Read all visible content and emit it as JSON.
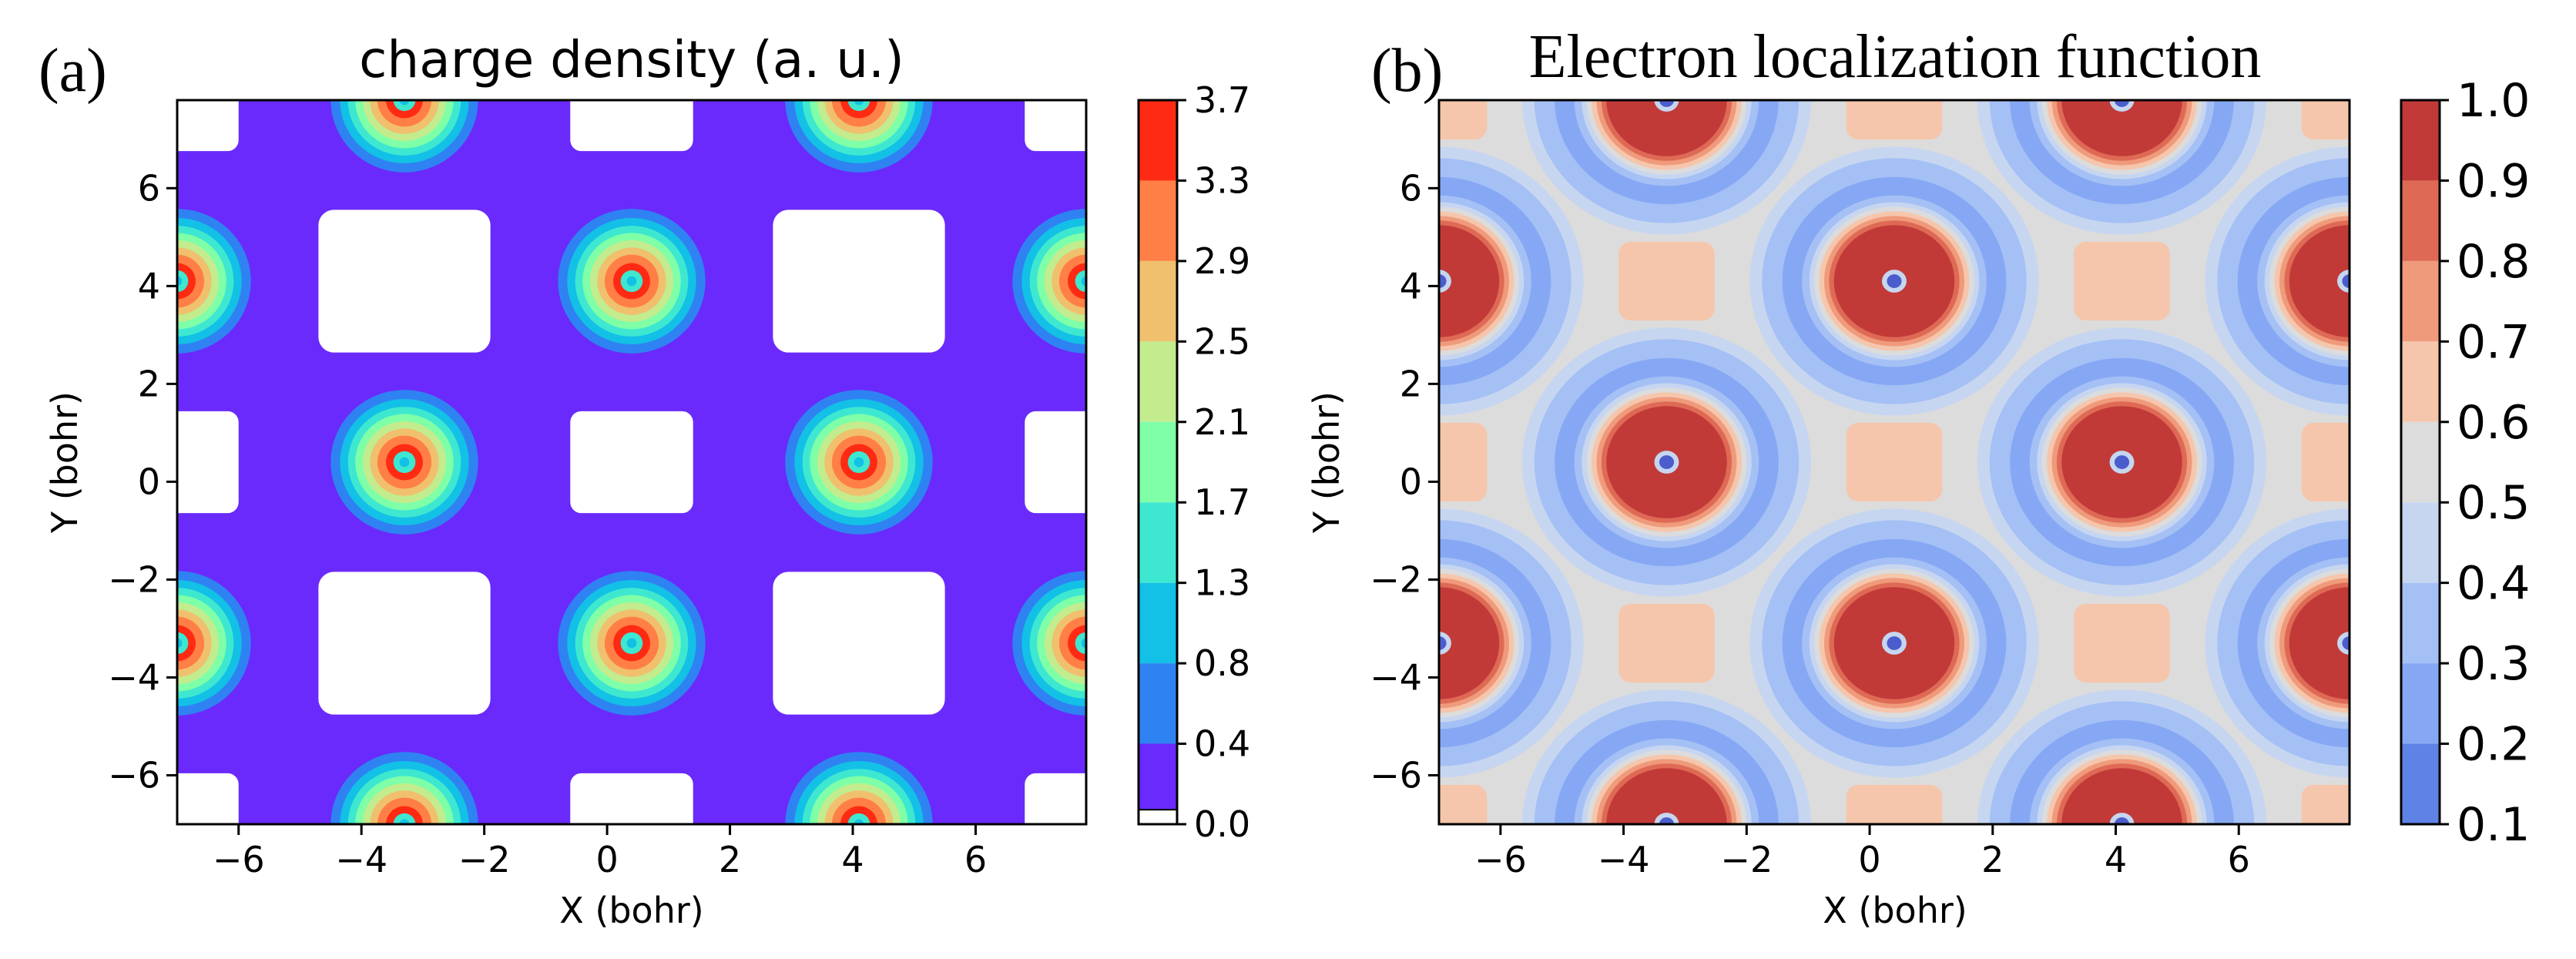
{
  "panels": [
    {
      "panel_label": "(a)",
      "title": "charge density (a. u.)",
      "xlabel": "X (bohr)",
      "ylabel": "Y (bohr)",
      "colorbar_ticks": [
        "3.7",
        "3.3",
        "2.9",
        "2.5",
        "2.1",
        "1.7",
        "1.3",
        "0.8",
        "0.4",
        "0.0"
      ],
      "colorbar_colors": [
        "#ff2a14",
        "#ff7f46",
        "#f0c06e",
        "#c2ec8e",
        "#7effa8",
        "#3ee8d0",
        "#13c0e6",
        "#2f82f2",
        "#6a2afb",
        "#ffffff"
      ]
    },
    {
      "panel_label": "(b)",
      "title": "Electron localization function",
      "xlabel": "X (bohr)",
      "ylabel": "Y (bohr)",
      "colorbar_ticks": [
        "1.0",
        "0.9",
        "0.8",
        "0.7",
        "0.6",
        "0.5",
        "0.4",
        "0.3",
        "0.2",
        "0.1"
      ],
      "colorbar_colors": [
        "#c13a38",
        "#de6a55",
        "#f09a7c",
        "#f5c6ac",
        "#dcdcdc",
        "#c7d6f0",
        "#a5c0f5",
        "#86a8f4",
        "#5f82e6",
        "#4b5ccc"
      ]
    }
  ],
  "chart_data": [
    {
      "type": "heatmap",
      "title": "charge density (a. u.)",
      "xlabel": "X (bohr)",
      "ylabel": "Y (bohr)",
      "xlim": [
        -7,
        7.8
      ],
      "ylim": [
        -7,
        7.8
      ],
      "xticks": [
        -6,
        -4,
        -2,
        0,
        2,
        4,
        6
      ],
      "yticks": [
        -6,
        -4,
        -2,
        0,
        2,
        4,
        6
      ],
      "levels": [
        0.0,
        0.4,
        0.8,
        1.3,
        1.7,
        2.1,
        2.5,
        2.9,
        3.3,
        3.7
      ],
      "background_level": 0.4,
      "atoms": [
        {
          "x": -3.3,
          "y": 7.8
        },
        {
          "x": 4.1,
          "y": 7.8
        },
        {
          "x": -7.0,
          "y": 4.1
        },
        {
          "x": 0.4,
          "y": 4.1
        },
        {
          "x": 7.8,
          "y": 4.1
        },
        {
          "x": -3.3,
          "y": 0.4
        },
        {
          "x": 4.1,
          "y": 0.4
        },
        {
          "x": -7.0,
          "y": -3.3
        },
        {
          "x": 0.4,
          "y": -3.3
        },
        {
          "x": 7.8,
          "y": -3.3
        },
        {
          "x": -3.3,
          "y": -7.0
        },
        {
          "x": 4.1,
          "y": -7.0
        }
      ],
      "low_density_regions": [
        {
          "x": -3.3,
          "y": 4.1,
          "half_width": 1.4
        },
        {
          "x": 4.1,
          "y": 4.1,
          "half_width": 1.4
        },
        {
          "x": -3.3,
          "y": -3.3,
          "half_width": 1.4
        },
        {
          "x": 4.1,
          "y": -3.3,
          "half_width": 1.4
        },
        {
          "x": -7.0,
          "y": 0.4,
          "half_width": 1.0
        },
        {
          "x": 0.4,
          "y": 0.4,
          "half_width": 1.0
        },
        {
          "x": 7.8,
          "y": 0.4,
          "half_width": 1.0
        },
        {
          "x": -7.0,
          "y": 7.8,
          "half_width": 1.0
        },
        {
          "x": 0.4,
          "y": 7.8,
          "half_width": 1.0
        },
        {
          "x": 7.8,
          "y": 7.8,
          "half_width": 1.0
        },
        {
          "x": -7.0,
          "y": -7.0,
          "half_width": 1.0
        },
        {
          "x": 0.4,
          "y": -7.0,
          "half_width": 1.0
        },
        {
          "x": 7.8,
          "y": -7.0,
          "half_width": 1.0
        }
      ]
    },
    {
      "type": "heatmap",
      "title": "Electron localization function",
      "xlabel": "X (bohr)",
      "ylabel": "Y (bohr)",
      "xlim": [
        -7,
        7.8
      ],
      "ylim": [
        -7,
        7.8
      ],
      "xticks": [
        -6,
        -4,
        -2,
        0,
        2,
        4,
        6
      ],
      "yticks": [
        -6,
        -4,
        -2,
        0,
        2,
        4,
        6
      ],
      "levels": [
        0.1,
        0.2,
        0.3,
        0.4,
        0.5,
        0.6,
        0.7,
        0.8,
        0.9,
        1.0
      ],
      "background_level": 0.55,
      "atoms": [
        {
          "x": -3.3,
          "y": 7.8
        },
        {
          "x": 4.1,
          "y": 7.8
        },
        {
          "x": -7.0,
          "y": 4.1
        },
        {
          "x": 0.4,
          "y": 4.1
        },
        {
          "x": 7.8,
          "y": 4.1
        },
        {
          "x": -3.3,
          "y": 0.4
        },
        {
          "x": 4.1,
          "y": 0.4
        },
        {
          "x": -7.0,
          "y": -3.3
        },
        {
          "x": 0.4,
          "y": -3.3
        },
        {
          "x": 7.8,
          "y": -3.3
        },
        {
          "x": -3.3,
          "y": -7.0
        },
        {
          "x": 4.1,
          "y": -7.0
        }
      ],
      "interstitial_regions": [
        {
          "x": -3.3,
          "y": 4.1
        },
        {
          "x": 4.1,
          "y": 4.1
        },
        {
          "x": -3.3,
          "y": -3.3
        },
        {
          "x": 4.1,
          "y": -3.3
        },
        {
          "x": -7.0,
          "y": 0.4
        },
        {
          "x": 0.4,
          "y": 0.4
        },
        {
          "x": 7.8,
          "y": 0.4
        },
        {
          "x": -7.0,
          "y": 7.8
        },
        {
          "x": 0.4,
          "y": 7.8
        },
        {
          "x": 7.8,
          "y": 7.8
        },
        {
          "x": -7.0,
          "y": -7.0
        },
        {
          "x": 0.4,
          "y": -7.0
        },
        {
          "x": 7.8,
          "y": -7.0
        }
      ]
    }
  ]
}
